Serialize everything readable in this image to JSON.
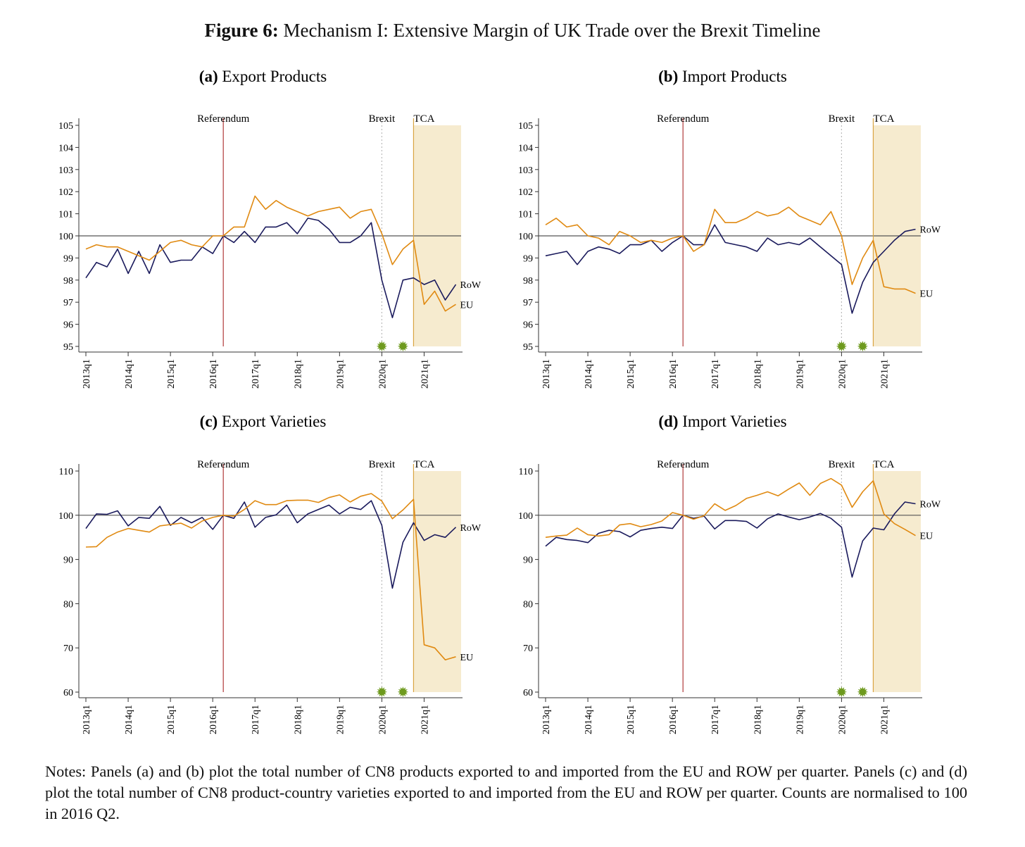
{
  "figure": {
    "label": "Figure 6:",
    "title": "Mechanism I: Extensive Margin of UK Trade over the Brexit Timeline"
  },
  "notes": "Notes: Panels (a) and (b) plot the total number of CN8 products exported to and imported from the EU and ROW per quarter. Panels (c) and (d) plot the total number of CN8 product-country varieties exported to and imported from the EU and ROW per quarter. Counts are normalised to 100 in 2016 Q2.",
  "colors": {
    "eu": "#E08A12",
    "row": "#1A1A5C",
    "referendum": "#B03A3A",
    "brexit": "#BBBBBB",
    "tca": "#D9A441",
    "tca_fill": "#F6EBCF",
    "marker": "#6E9A1E",
    "baseline": "#555555"
  },
  "chart_data": [
    {
      "type": "line",
      "panel_label": "(a)",
      "title": "Export Products",
      "x_ticks": [
        "2013q1",
        "2014q1",
        "2015q1",
        "2016q1",
        "2017q1",
        "2018q1",
        "2019q1",
        "2020q1",
        "2021q1"
      ],
      "quarters": [
        "2013q1",
        "2013q2",
        "2013q3",
        "2013q4",
        "2014q1",
        "2014q2",
        "2014q3",
        "2014q4",
        "2015q1",
        "2015q2",
        "2015q3",
        "2015q4",
        "2016q1",
        "2016q2",
        "2016q3",
        "2016q4",
        "2017q1",
        "2017q2",
        "2017q3",
        "2017q4",
        "2018q1",
        "2018q2",
        "2018q3",
        "2018q4",
        "2019q1",
        "2019q2",
        "2019q3",
        "2019q4",
        "2020q1",
        "2020q2",
        "2020q3",
        "2020q4",
        "2021q1",
        "2021q2",
        "2021q3",
        "2021q4"
      ],
      "ylim": [
        95,
        105
      ],
      "y_ticks": [
        95,
        96,
        97,
        98,
        99,
        100,
        101,
        102,
        103,
        104,
        105
      ],
      "baseline": 100,
      "events": [
        {
          "label": "Referendum",
          "quarter": "2016q2"
        },
        {
          "label": "Brexit",
          "quarter": "2020q1"
        },
        {
          "label": "TCA",
          "quarter": "2020q4"
        }
      ],
      "shaded_from": "2020q4",
      "markers_at": [
        "2020q1",
        "2020q3"
      ],
      "series": [
        {
          "name": "RoW",
          "values": [
            98.1,
            98.8,
            98.6,
            99.4,
            98.3,
            99.3,
            98.3,
            99.6,
            98.8,
            98.9,
            98.9,
            99.5,
            99.2,
            100.0,
            99.7,
            100.2,
            99.7,
            100.4,
            100.4,
            100.6,
            100.1,
            100.8,
            100.7,
            100.3,
            99.7,
            99.7,
            100.0,
            100.6,
            98.0,
            96.3,
            98.0,
            98.1,
            97.8,
            98.0,
            97.1,
            97.8
          ]
        },
        {
          "name": "EU",
          "values": [
            99.4,
            99.6,
            99.5,
            99.5,
            99.3,
            99.1,
            98.9,
            99.3,
            99.7,
            99.8,
            99.6,
            99.5,
            100.0,
            100.0,
            100.4,
            100.4,
            101.8,
            101.2,
            101.6,
            101.3,
            101.1,
            100.9,
            101.1,
            101.2,
            101.3,
            100.8,
            101.1,
            101.2,
            100.1,
            98.7,
            99.4,
            99.8,
            96.9,
            97.5,
            96.6,
            96.9
          ]
        }
      ]
    },
    {
      "type": "line",
      "panel_label": "(b)",
      "title": "Import Products",
      "x_ticks": [
        "2013q1",
        "2014q1",
        "2015q1",
        "2016q1",
        "2017q1",
        "2018q1",
        "2019q1",
        "2020q1",
        "2021q1"
      ],
      "quarters": [
        "2013q1",
        "2013q2",
        "2013q3",
        "2013q4",
        "2014q1",
        "2014q2",
        "2014q3",
        "2014q4",
        "2015q1",
        "2015q2",
        "2015q3",
        "2015q4",
        "2016q1",
        "2016q2",
        "2016q3",
        "2016q4",
        "2017q1",
        "2017q2",
        "2017q3",
        "2017q4",
        "2018q1",
        "2018q2",
        "2018q3",
        "2018q4",
        "2019q1",
        "2019q2",
        "2019q3",
        "2019q4",
        "2020q1",
        "2020q2",
        "2020q3",
        "2020q4",
        "2021q1",
        "2021q2",
        "2021q3",
        "2021q4"
      ],
      "ylim": [
        95,
        105
      ],
      "y_ticks": [
        95,
        96,
        97,
        98,
        99,
        100,
        101,
        102,
        103,
        104,
        105
      ],
      "baseline": 100,
      "events": [
        {
          "label": "Referendum",
          "quarter": "2016q2"
        },
        {
          "label": "Brexit",
          "quarter": "2020q1"
        },
        {
          "label": "TCA",
          "quarter": "2020q4"
        }
      ],
      "shaded_from": "2020q4",
      "markers_at": [
        "2020q1",
        "2020q3"
      ],
      "series": [
        {
          "name": "RoW",
          "values": [
            99.1,
            99.2,
            99.3,
            98.7,
            99.3,
            99.5,
            99.4,
            99.2,
            99.6,
            99.6,
            99.8,
            99.3,
            99.7,
            100.0,
            99.6,
            99.6,
            100.5,
            99.7,
            99.6,
            99.5,
            99.3,
            99.9,
            99.6,
            99.7,
            99.6,
            99.9,
            99.5,
            99.1,
            98.7,
            96.5,
            97.9,
            98.8,
            99.3,
            99.8,
            100.2,
            100.3
          ]
        },
        {
          "name": "EU",
          "values": [
            100.5,
            100.8,
            100.4,
            100.5,
            100.0,
            99.9,
            99.6,
            100.2,
            100.0,
            99.7,
            99.8,
            99.7,
            99.9,
            100.0,
            99.3,
            99.6,
            101.2,
            100.6,
            100.6,
            100.8,
            101.1,
            100.9,
            101.0,
            101.3,
            100.9,
            100.7,
            100.5,
            101.1,
            100.0,
            97.8,
            99.0,
            99.8,
            97.7,
            97.6,
            97.6,
            97.4
          ]
        }
      ]
    },
    {
      "type": "line",
      "panel_label": "(c)",
      "title": "Export Varieties",
      "x_ticks": [
        "2013q1",
        "2014q1",
        "2015q1",
        "2016q1",
        "2017q1",
        "2018q1",
        "2019q1",
        "2020q1",
        "2021q1"
      ],
      "quarters": [
        "2013q1",
        "2013q2",
        "2013q3",
        "2013q4",
        "2014q1",
        "2014q2",
        "2014q3",
        "2014q4",
        "2015q1",
        "2015q2",
        "2015q3",
        "2015q4",
        "2016q1",
        "2016q2",
        "2016q3",
        "2016q4",
        "2017q1",
        "2017q2",
        "2017q3",
        "2017q4",
        "2018q1",
        "2018q2",
        "2018q3",
        "2018q4",
        "2019q1",
        "2019q2",
        "2019q3",
        "2019q4",
        "2020q1",
        "2020q2",
        "2020q3",
        "2020q4",
        "2021q1",
        "2021q2",
        "2021q3",
        "2021q4"
      ],
      "ylim": [
        60,
        110
      ],
      "y_ticks": [
        60,
        70,
        80,
        90,
        100,
        110
      ],
      "baseline": 100,
      "events": [
        {
          "label": "Referendum",
          "quarter": "2016q2"
        },
        {
          "label": "Brexit",
          "quarter": "2020q1"
        },
        {
          "label": "TCA",
          "quarter": "2020q4"
        }
      ],
      "shaded_from": "2020q4",
      "markers_at": [
        "2020q1",
        "2020q3"
      ],
      "series": [
        {
          "name": "RoW",
          "values": [
            97.0,
            100.3,
            100.2,
            101.0,
            97.6,
            99.5,
            99.3,
            102.0,
            97.7,
            99.5,
            98.3,
            99.5,
            96.8,
            100.0,
            99.3,
            103.0,
            97.3,
            99.5,
            100.1,
            102.3,
            98.3,
            100.3,
            101.3,
            102.3,
            100.3,
            101.8,
            101.3,
            103.3,
            97.7,
            83.5,
            93.9,
            98.3,
            94.3,
            95.6,
            95.0,
            97.3
          ]
        },
        {
          "name": "EU",
          "values": [
            92.8,
            92.9,
            95.0,
            96.2,
            97.0,
            96.6,
            96.2,
            97.6,
            97.9,
            98.2,
            97.1,
            98.7,
            99.5,
            100.0,
            99.8,
            101.3,
            103.3,
            102.4,
            102.4,
            103.3,
            103.4,
            103.4,
            102.9,
            104.0,
            104.6,
            103.0,
            104.3,
            104.9,
            103.2,
            99.2,
            101.2,
            103.6,
            70.7,
            70.0,
            67.3,
            68.0
          ]
        }
      ]
    },
    {
      "type": "line",
      "panel_label": "(d)",
      "title": "Import Varieties",
      "x_ticks": [
        "2013q1",
        "2014q1",
        "2015q1",
        "2016q1",
        "2017q1",
        "2018q1",
        "2019q1",
        "2020q1",
        "2021q1"
      ],
      "quarters": [
        "2013q1",
        "2013q2",
        "2013q3",
        "2013q4",
        "2014q1",
        "2014q2",
        "2014q3",
        "2014q4",
        "2015q1",
        "2015q2",
        "2015q3",
        "2015q4",
        "2016q1",
        "2016q2",
        "2016q3",
        "2016q4",
        "2017q1",
        "2017q2",
        "2017q3",
        "2017q4",
        "2018q1",
        "2018q2",
        "2018q3",
        "2018q4",
        "2019q1",
        "2019q2",
        "2019q3",
        "2019q4",
        "2020q1",
        "2020q2",
        "2020q3",
        "2020q4",
        "2021q1",
        "2021q2",
        "2021q3",
        "2021q4"
      ],
      "ylim": [
        60,
        110
      ],
      "y_ticks": [
        60,
        70,
        80,
        90,
        100,
        110
      ],
      "baseline": 100,
      "events": [
        {
          "label": "Referendum",
          "quarter": "2016q2"
        },
        {
          "label": "Brexit",
          "quarter": "2020q1"
        },
        {
          "label": "TCA",
          "quarter": "2020q4"
        }
      ],
      "shaded_from": "2020q4",
      "markers_at": [
        "2020q1",
        "2020q3"
      ],
      "series": [
        {
          "name": "RoW",
          "values": [
            93.0,
            95.0,
            94.5,
            94.3,
            93.8,
            95.9,
            96.6,
            96.3,
            95.1,
            96.6,
            97.0,
            97.3,
            97.0,
            100.0,
            99.3,
            99.8,
            96.9,
            98.8,
            98.8,
            98.6,
            97.1,
            99.2,
            100.3,
            99.6,
            99.0,
            99.6,
            100.4,
            99.3,
            97.3,
            86.0,
            94.2,
            97.1,
            96.7,
            100.3,
            103.0,
            102.6
          ]
        },
        {
          "name": "EU",
          "values": [
            95.0,
            95.3,
            95.5,
            97.1,
            95.6,
            95.3,
            95.6,
            97.8,
            98.1,
            97.4,
            97.9,
            98.7,
            100.6,
            100.0,
            99.1,
            99.9,
            102.6,
            101.1,
            102.2,
            103.8,
            104.5,
            105.3,
            104.4,
            105.9,
            107.3,
            104.5,
            107.2,
            108.3,
            106.8,
            101.8,
            105.3,
            107.8,
            100.3,
            98.1,
            96.8,
            95.4
          ]
        }
      ]
    }
  ]
}
